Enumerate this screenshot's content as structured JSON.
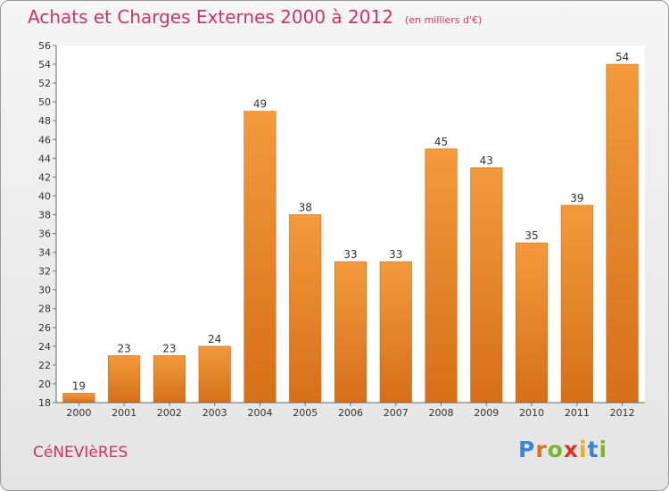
{
  "chart_data": {
    "type": "bar",
    "title": "Achats et Charges Externes 2000 à 2012",
    "unit": "(en milliers d'€)",
    "categories": [
      "2000",
      "2001",
      "2002",
      "2003",
      "2004",
      "2005",
      "2006",
      "2007",
      "2008",
      "2009",
      "2010",
      "2011",
      "2012"
    ],
    "values": [
      19,
      23,
      23,
      24,
      49,
      38,
      33,
      33,
      45,
      43,
      35,
      39,
      54
    ],
    "ylim": [
      18,
      56
    ],
    "yticks": [
      18,
      20,
      22,
      24,
      26,
      28,
      30,
      32,
      34,
      36,
      38,
      40,
      42,
      44,
      46,
      48,
      50,
      52,
      54,
      56
    ],
    "grid": false,
    "bar_color": "#f39a3c",
    "bar_color_dark": "#d66f18"
  },
  "footer": {
    "commune": "CéNEVIèRES",
    "brand": [
      "P",
      "r",
      "o",
      "x",
      "i",
      "t",
      "i"
    ],
    "brand_colors": [
      "#3a86d0",
      "#e0711c",
      "#7ab82f",
      "#d8342c",
      "#e8b11c",
      "#3a86d0",
      "#7ab82f"
    ]
  }
}
